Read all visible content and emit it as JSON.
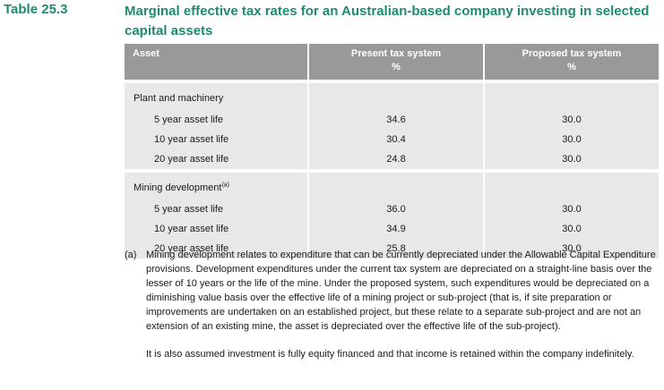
{
  "table_label": "Table 25.3",
  "title": "Marginal effective tax rates for an Australian-based company investing in selected capital assets",
  "columns": {
    "asset": "Asset",
    "present": "Present tax system",
    "present_unit": "%",
    "proposed": "Proposed tax system",
    "proposed_unit": "%"
  },
  "groups": [
    {
      "label": "Plant and machinery",
      "footnote": "",
      "rows": [
        {
          "label": "5 year asset life",
          "present": "34.6",
          "proposed": "30.0"
        },
        {
          "label": "10 year asset life",
          "present": "30.4",
          "proposed": "30.0"
        },
        {
          "label": "20 year asset life",
          "present": "24.8",
          "proposed": "30.0"
        }
      ]
    },
    {
      "label": "Mining development",
      "footnote": "(a)",
      "rows": [
        {
          "label": "5 year asset life",
          "present": "36.0",
          "proposed": "30.0"
        },
        {
          "label": "10 year asset life",
          "present": "34.9",
          "proposed": "30.0"
        },
        {
          "label": "20 year asset life",
          "present": "25.8",
          "proposed": "30.0"
        }
      ]
    }
  ],
  "notes": {
    "marker": "(a)",
    "text": "Mining development relates to expenditure that can be currently depreciated under the Allowable Capital Expenditure provisions.  Development expenditures under the current tax system are depreciated on a straight-line basis over the lesser of 10 years or the life of the mine.  Under the proposed system, such expenditures would be depreciated on a diminishing value basis over the effective life of a mining project or sub-project (that is, if site preparation or improvements are undertaken on an established project, but these relate to a separate sub-project and are not an extension of an existing mine, the asset is depreciated over the effective life of the sub-project).",
    "additional": "It is also assumed investment is fully equity financed and that income is retained within the company indefinitely."
  }
}
